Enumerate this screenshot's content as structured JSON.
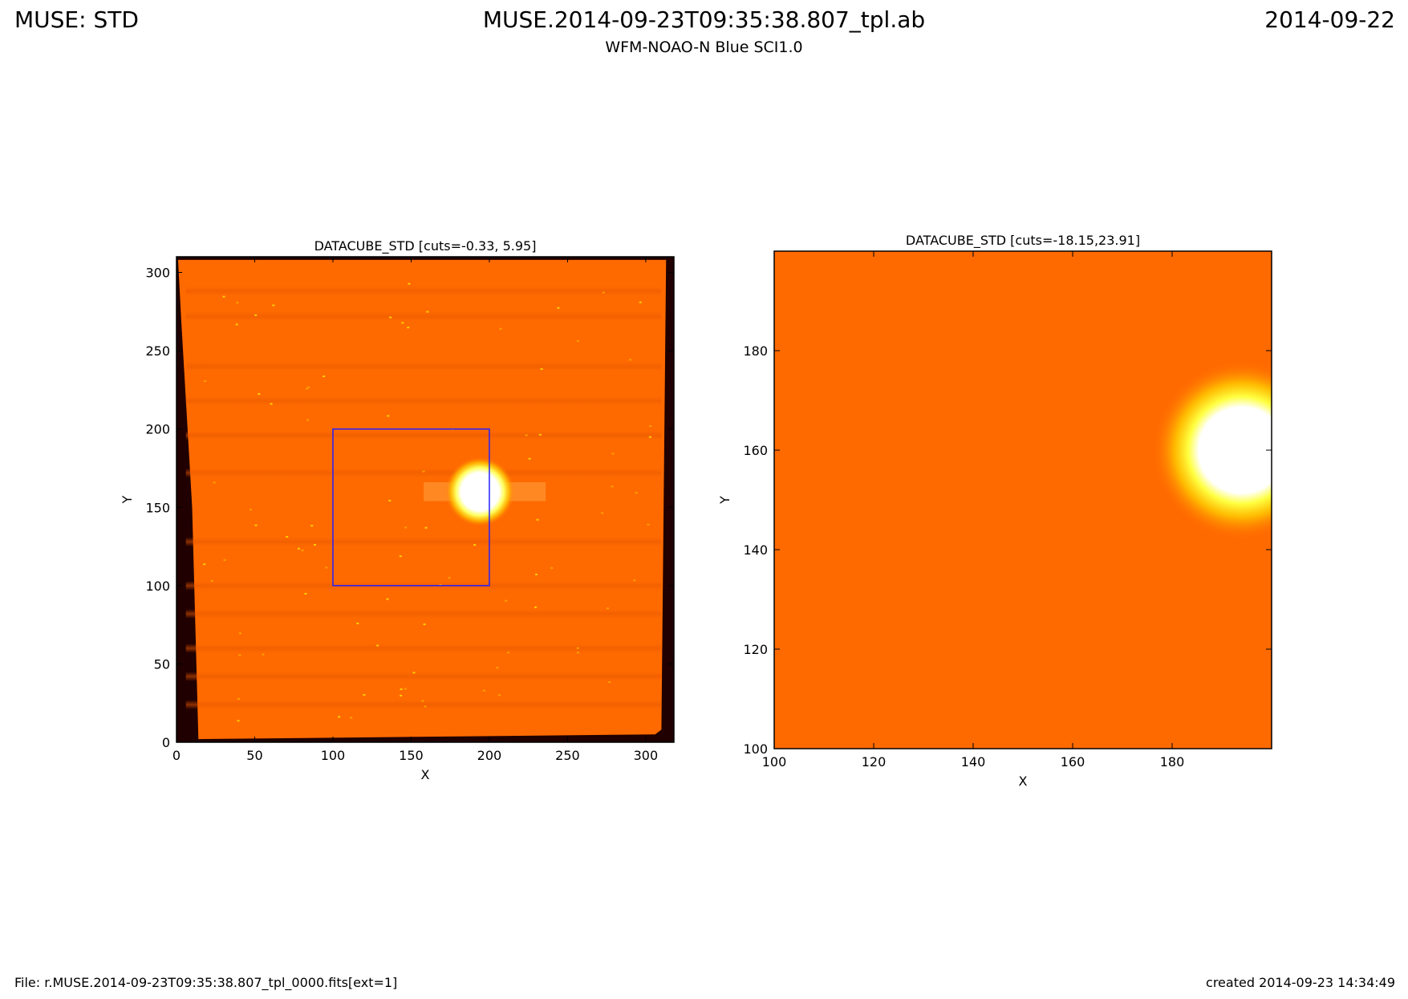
{
  "header": {
    "left": "MUSE: STD",
    "center": "MUSE.2014-09-23T09:35:38.807_tpl.ab",
    "subtitle": "WFM-NOAO-N Blue SCI1.0",
    "right": "2014-09-22"
  },
  "footer": {
    "file": "File: r.MUSE.2014-09-23T09:35:38.807_tpl_0000.fits[ext=1]",
    "created": "created 2014-09-23 14:34:49"
  },
  "colors": {
    "background_field": "#ff6a00",
    "field_dark_border": "#200000",
    "star_core": "#ffffff",
    "star_halo": "#ffff30",
    "zoom_box": "#2020ff"
  },
  "chart_data": [
    {
      "type": "heatmap",
      "title": "DATACUBE_STD [cuts=-0.33, 5.95]",
      "xlabel": "X",
      "ylabel": "Y",
      "xlim": [
        0,
        318
      ],
      "ylim": [
        0,
        310
      ],
      "xticks": [
        0,
        50,
        100,
        150,
        200,
        250,
        300
      ],
      "yticks": [
        0,
        50,
        100,
        150,
        200,
        250,
        300
      ],
      "colormap": "hot",
      "star": {
        "x": 194,
        "y": 160
      },
      "zoom_box": {
        "x0": 100,
        "x1": 200,
        "y0": 100,
        "y1": 200
      }
    },
    {
      "type": "heatmap",
      "title": "DATACUBE_STD [cuts=-18.15,23.91]",
      "xlabel": "X",
      "ylabel": "Y",
      "xlim": [
        100,
        200
      ],
      "ylim": [
        100,
        200
      ],
      "xticks": [
        100,
        120,
        140,
        160,
        180
      ],
      "yticks": [
        100,
        120,
        140,
        160,
        180
      ],
      "colormap": "hot",
      "star": {
        "x": 194,
        "y": 160
      }
    }
  ]
}
